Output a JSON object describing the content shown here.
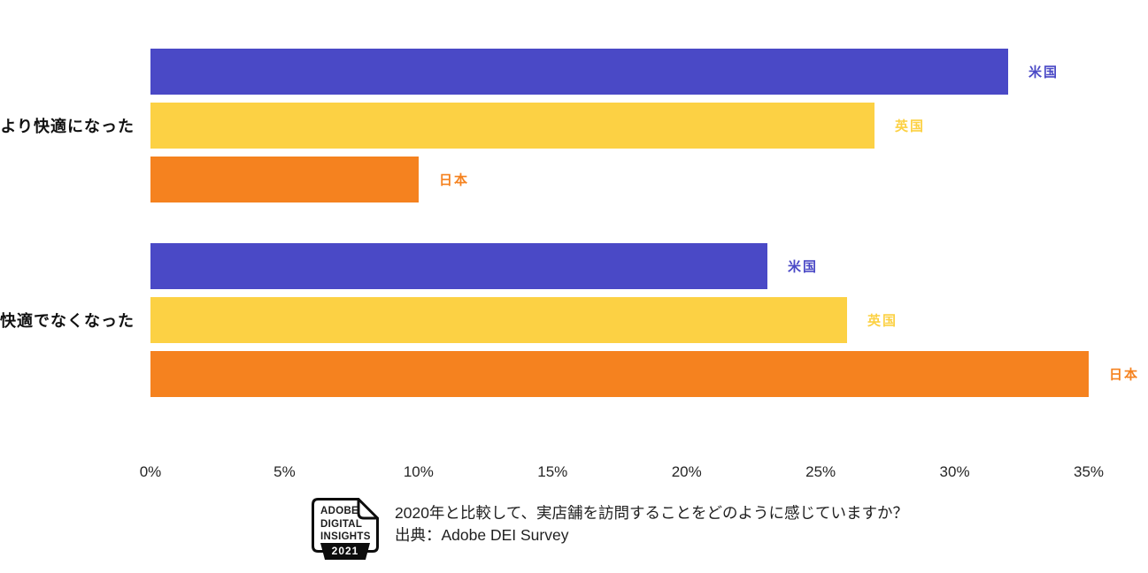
{
  "colors": {
    "us_blue": "#4A49C6",
    "uk_yellow": "#FCD144",
    "jp_orange": "#F5821F",
    "axis_text": "#262626",
    "logo_black": "#0d0d0d"
  },
  "chart_data": {
    "type": "bar",
    "orientation": "horizontal",
    "title": "",
    "categories": [
      "より快適になった",
      "快適でなくなった"
    ],
    "series": [
      {
        "name": "米国",
        "color": "#4A49C6",
        "values": [
          32,
          23
        ]
      },
      {
        "name": "英国",
        "color": "#FCD144",
        "values": [
          27,
          26
        ]
      },
      {
        "name": "日本",
        "color": "#F5821F",
        "values": [
          10,
          35
        ]
      }
    ],
    "x_ticks": [
      "0%",
      "5%",
      "10%",
      "15%",
      "20%",
      "25%",
      "30%",
      "35%"
    ],
    "x_tick_values": [
      0,
      5,
      10,
      15,
      20,
      25,
      30,
      35
    ],
    "xlim": [
      0,
      35
    ],
    "unit": "%",
    "grid": false,
    "legend_position": "bar-end-labels"
  },
  "footer": {
    "logo": {
      "line1": "ADOBE",
      "line2": "DIGITAL",
      "line3": "INSIGHTS",
      "year": "2021"
    },
    "caption_line1": "2020年と比較して、実店舗を訪問することをどのように感じていますか？",
    "caption_line2": "出典：Adobe DEI Survey"
  }
}
